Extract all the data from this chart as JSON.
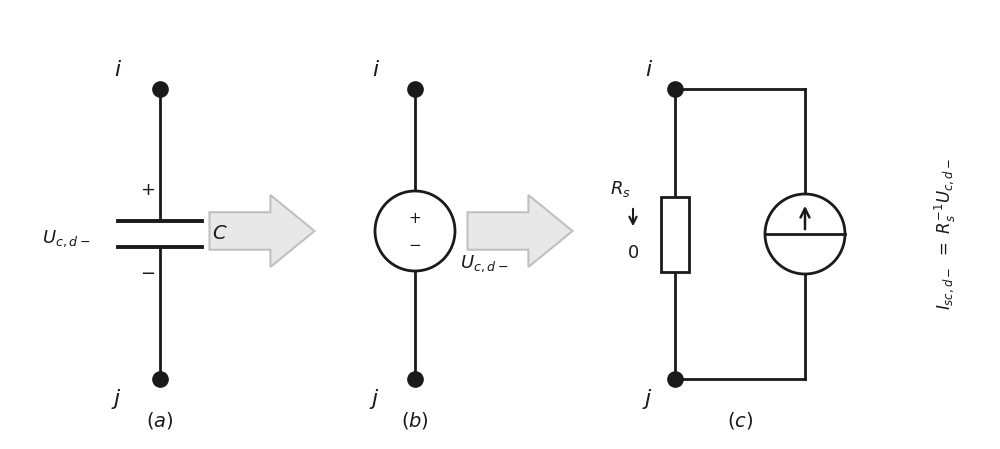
{
  "bg_color": "#ffffff",
  "line_color": "#1a1a1a",
  "arrow_fill": "#e8e8e8",
  "arrow_edge": "#c0c0c0",
  "fig_width": 10.0,
  "fig_height": 4.49
}
